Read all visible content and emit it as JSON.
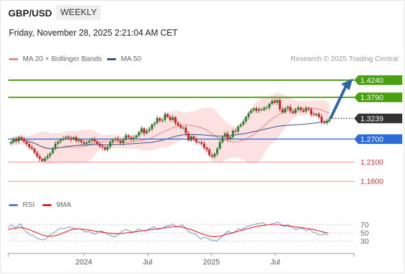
{
  "header": {
    "symbol": "GBP/USD",
    "timeframe": "WEEKLY",
    "timestamp": "Friday, November 28, 2025 2:21:04 AM CET",
    "credit": "Research © 2025 Trading Central"
  },
  "legend": {
    "ma20_label": "MA 20 + Bollinger Bands",
    "ma50_label": "MA 50",
    "rsi_label": "RSI",
    "ma9_label": "9MA"
  },
  "colors": {
    "ma20": "#f08080",
    "ma50": "#2a4f8a",
    "bands_fill": "#fde0e0",
    "bull": "#2e7d32",
    "bear": "#c62828",
    "resistance": "#4aa010",
    "support_blue": "#2e6bd6",
    "support_red": "#f28b8b",
    "current": "#333333",
    "arrow": "#2f63a8",
    "rsi": "#5577dd",
    "rsi_ma": "#e02020"
  },
  "chart_data": [
    {
      "type": "candlestick",
      "title": "",
      "x_tick_labels": [
        "2024",
        "Jul",
        "2025",
        "Jul"
      ],
      "ylim": [
        1.145,
        1.44
      ],
      "levels": [
        {
          "value": 1.424,
          "label": "1.4240",
          "kind": "resistance"
        },
        {
          "value": 1.379,
          "label": "1.3790",
          "kind": "resistance"
        },
        {
          "value": 1.3239,
          "label": "1.3239",
          "kind": "current"
        },
        {
          "value": 1.27,
          "label": "1.2700",
          "kind": "pivot"
        },
        {
          "value": 1.21,
          "label": "1.2100",
          "kind": "support"
        },
        {
          "value": 1.16,
          "label": "1.1600",
          "kind": "support"
        }
      ],
      "forecast_arrow": {
        "from": 1.326,
        "to": 1.421
      },
      "close": [
        1.262,
        1.27,
        1.265,
        1.275,
        1.27,
        1.263,
        1.257,
        1.249,
        1.245,
        1.235,
        1.225,
        1.218,
        1.213,
        1.22,
        1.226,
        1.233,
        1.245,
        1.258,
        1.264,
        1.268,
        1.272,
        1.276,
        1.273,
        1.27,
        1.275,
        1.265,
        1.268,
        1.262,
        1.258,
        1.261,
        1.266,
        1.27,
        1.264,
        1.258,
        1.252,
        1.249,
        1.242,
        1.25,
        1.262,
        1.268,
        1.271,
        1.266,
        1.26,
        1.268,
        1.28,
        1.275,
        1.27,
        1.274,
        1.279,
        1.288,
        1.298,
        1.285,
        1.292,
        1.296,
        1.308,
        1.312,
        1.325,
        1.318,
        1.32,
        1.335,
        1.328,
        1.32,
        1.327,
        1.312,
        1.306,
        1.3,
        1.3,
        1.285,
        1.267,
        1.277,
        1.27,
        1.262,
        1.262,
        1.258,
        1.248,
        1.243,
        1.228,
        1.224,
        1.232,
        1.245,
        1.262,
        1.276,
        1.285,
        1.27,
        1.275,
        1.292,
        1.29,
        1.303,
        1.308,
        1.316,
        1.328,
        1.338,
        1.345,
        1.35,
        1.344,
        1.348,
        1.346,
        1.352,
        1.352,
        1.362,
        1.37,
        1.365,
        1.372,
        1.348,
        1.34,
        1.35,
        1.354,
        1.343,
        1.338,
        1.347,
        1.352,
        1.346,
        1.342,
        1.351,
        1.348,
        1.335,
        1.333,
        1.336,
        1.328,
        1.315,
        1.312,
        1.318,
        1.322
      ]
    },
    {
      "type": "line",
      "title": "",
      "ylim": [
        20,
        80
      ],
      "y_tick_labels": [
        "70",
        "50",
        "30"
      ],
      "series": [
        {
          "name": "RSI",
          "values": [
            62,
            70,
            64,
            66,
            72,
            58,
            52,
            45,
            44,
            38,
            35,
            33,
            35,
            42,
            48,
            52,
            58,
            62,
            60,
            63,
            64,
            62,
            58,
            61,
            56,
            52,
            54,
            49,
            47,
            52,
            55,
            51,
            46,
            44,
            40,
            43,
            50,
            56,
            58,
            55,
            50,
            54,
            60,
            56,
            54,
            58,
            62,
            65,
            58,
            60,
            63,
            67,
            68,
            72,
            64,
            66,
            70,
            62,
            54,
            50,
            48,
            42,
            35,
            40,
            38,
            33,
            32,
            30,
            36,
            42,
            50,
            55,
            48,
            52,
            60,
            58,
            62,
            66,
            68,
            70,
            72,
            73,
            75,
            69,
            70,
            72,
            74,
            76,
            68,
            66,
            70,
            66,
            60,
            58,
            62,
            60,
            55,
            60,
            52,
            50,
            45,
            45,
            48,
            44
          ]
        },
        {
          "name": "9MA",
          "values": [
            58,
            60,
            61,
            62,
            63,
            62,
            60,
            57,
            54,
            51,
            48,
            45,
            43,
            42,
            42,
            43,
            45,
            48,
            51,
            54,
            57,
            59,
            60,
            60,
            59,
            58,
            57,
            56,
            54,
            53,
            52,
            51,
            50,
            49,
            48,
            48,
            48,
            49,
            50,
            51,
            52,
            53,
            54,
            55,
            56,
            57,
            58,
            59,
            60,
            61,
            62,
            63,
            64,
            65,
            66,
            65,
            64,
            62,
            60,
            58,
            55,
            52,
            49,
            46,
            44,
            42,
            41,
            41,
            42,
            44,
            46,
            48,
            50,
            52,
            54,
            56,
            58,
            60,
            62,
            64,
            66,
            67,
            68,
            69,
            70,
            70,
            70,
            70,
            69,
            68,
            67,
            66,
            65,
            64,
            63,
            62,
            61,
            60,
            59,
            57,
            55,
            53,
            51,
            50
          ]
        }
      ]
    }
  ]
}
